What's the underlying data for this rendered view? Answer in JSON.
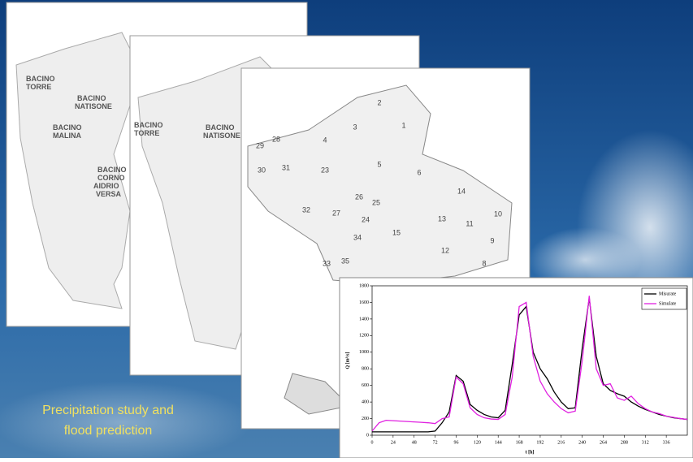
{
  "maps": [
    {
      "labels": [
        [
          "BACINO",
          "TORRE"
        ],
        [
          "BACINO",
          "NATISONE"
        ],
        [
          "BACINO",
          "MALINA"
        ],
        [
          "BACINO",
          "CORNO",
          "AIDRIO",
          "VERSA"
        ]
      ]
    },
    {
      "labels": [
        [
          "BACINO",
          "TORRE"
        ],
        [
          "BACINO",
          "NATISONE"
        ]
      ]
    },
    {
      "labels": [
        "2",
        "1",
        "3",
        "4",
        "28",
        "29",
        "30",
        "31",
        "23",
        "5",
        "6",
        "14",
        "26",
        "25",
        "27",
        "32",
        "24",
        "13",
        "11",
        "10",
        "34",
        "15",
        "9",
        "12",
        "33",
        "35",
        "8"
      ]
    }
  ],
  "caption": [
    "Precipitation study and",
    "flood prediction"
  ],
  "chart_data": {
    "type": "line",
    "x_label": "t [h]",
    "y_label": "Q [m³/s]",
    "x": [
      0,
      8,
      16,
      24,
      32,
      40,
      48,
      56,
      64,
      72,
      80,
      88,
      96,
      104,
      112,
      120,
      128,
      136,
      144,
      152,
      160,
      168,
      176,
      184,
      192,
      200,
      208,
      216,
      224,
      232,
      240,
      248,
      256,
      264,
      272,
      280,
      288,
      296,
      304,
      312,
      320,
      328,
      336,
      344,
      352,
      360
    ],
    "series": [
      {
        "name": "Misurate",
        "color": "#000000",
        "values": [
          40,
          40,
          40,
          40,
          40,
          40,
          40,
          40,
          40,
          50,
          150,
          280,
          720,
          650,
          370,
          300,
          250,
          220,
          210,
          300,
          850,
          1450,
          1550,
          1000,
          800,
          680,
          520,
          400,
          320,
          330,
          1050,
          1650,
          950,
          620,
          540,
          500,
          470,
          400,
          350,
          310,
          280,
          250,
          230,
          210,
          200,
          190
        ]
      },
      {
        "name": "Simulate",
        "color": "#e020e0",
        "values": [
          50,
          150,
          180,
          175,
          170,
          165,
          160,
          155,
          150,
          140,
          200,
          220,
          700,
          620,
          330,
          250,
          210,
          195,
          190,
          250,
          700,
          1550,
          1600,
          950,
          650,
          500,
          400,
          320,
          270,
          290,
          900,
          1680,
          800,
          600,
          620,
          450,
          420,
          470,
          380,
          320,
          280,
          260,
          230,
          215,
          200,
          190
        ]
      }
    ],
    "xlim": [
      0,
      360
    ],
    "xticks": [
      0,
      24,
      48,
      72,
      96,
      120,
      144,
      168,
      192,
      216,
      240,
      264,
      288,
      312,
      336
    ],
    "ylim": [
      0,
      1800
    ],
    "yticks": [
      0,
      200,
      400,
      600,
      800,
      1000,
      1200,
      1400,
      1600,
      1800
    ],
    "legend": "upper-right"
  }
}
